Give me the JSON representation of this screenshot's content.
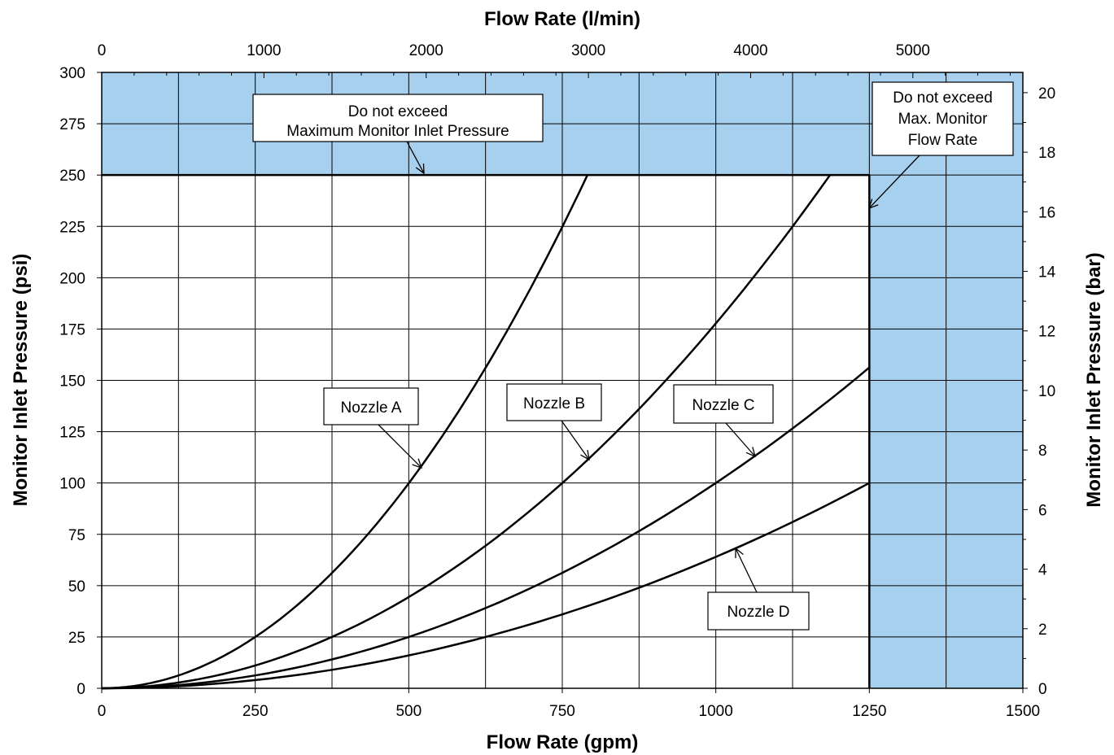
{
  "chart_data": {
    "type": "line",
    "xlabel": "Flow Rate (gpm)",
    "x2label": "Flow Rate (l/min)",
    "ylabel": "Monitor Inlet Pressure (psi)",
    "y2label": "Monitor Inlet Pressure (bar)",
    "xlim": [
      0,
      1500
    ],
    "ylim": [
      0,
      300
    ],
    "x2lim": [
      0,
      5678
    ],
    "y2lim": [
      0,
      20.68
    ],
    "x_ticks": [
      "0",
      "250",
      "500",
      "750",
      "1000",
      "1250",
      "1500"
    ],
    "y_ticks": [
      "0",
      "25",
      "50",
      "75",
      "100",
      "125",
      "150",
      "175",
      "200",
      "225",
      "250",
      "275",
      "300"
    ],
    "x2_ticks": [
      "0",
      "1000",
      "2000",
      "3000",
      "4000",
      "5000"
    ],
    "y2_ticks": [
      "0",
      "2",
      "4",
      "6",
      "8",
      "10",
      "12",
      "14",
      "16",
      "18",
      "20"
    ],
    "grid": true,
    "max_pressure_psi": 250,
    "max_flow_gpm": 1250,
    "limit_fill_color": "#a6d0ee",
    "line_color": "#000000",
    "series": [
      {
        "name": "Nozzle A",
        "x": [
          0,
          125,
          250,
          375,
          500,
          625,
          750,
          791
        ],
        "y": [
          0,
          6.25,
          25,
          56.25,
          100,
          156.25,
          225,
          250
        ]
      },
      {
        "name": "Nozzle B",
        "x": [
          0,
          125,
          250,
          375,
          500,
          625,
          750,
          875,
          1000,
          1125,
          1186
        ],
        "y": [
          0,
          2.78,
          11.1,
          25,
          44.4,
          69.4,
          100,
          136.1,
          177.8,
          225,
          250
        ]
      },
      {
        "name": "Nozzle C",
        "x": [
          0,
          125,
          250,
          375,
          500,
          625,
          750,
          875,
          1000,
          1125,
          1250
        ],
        "y": [
          0,
          1.56,
          6.25,
          14.06,
          25,
          39.06,
          56.25,
          76.56,
          100,
          126.56,
          156.25
        ]
      },
      {
        "name": "Nozzle D",
        "x": [
          0,
          125,
          250,
          375,
          500,
          625,
          750,
          875,
          1000,
          1125,
          1250
        ],
        "y": [
          0,
          1,
          4,
          9,
          16,
          25,
          36,
          49,
          64,
          81,
          100
        ]
      }
    ],
    "annotations": [
      {
        "id": "max-pressure",
        "lines": [
          "Do not exceed",
          "Maximum Monitor Inlet Pressure"
        ]
      },
      {
        "id": "max-flow",
        "lines": [
          "Do not exceed",
          "Max. Monitor",
          "Flow Rate"
        ]
      },
      {
        "id": "nozzle-a",
        "lines": [
          "Nozzle A"
        ]
      },
      {
        "id": "nozzle-b",
        "lines": [
          "Nozzle B"
        ]
      },
      {
        "id": "nozzle-c",
        "lines": [
          "Nozzle C"
        ]
      },
      {
        "id": "nozzle-d",
        "lines": [
          "Nozzle D"
        ]
      }
    ]
  }
}
